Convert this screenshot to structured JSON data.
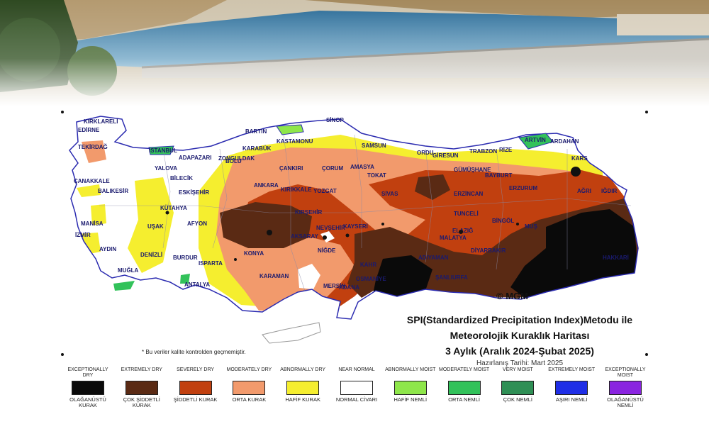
{
  "map": {
    "title_line1": "SPI(Standardized Precipitation Index)Metodu ile",
    "title_line2": "Meteorolojik Kuraklık Haritası",
    "title_line3": "3 Aylık (Aralık 2024-Şubat 2025)",
    "prepared_date": "Hazırlanış Tarihi: Mart 2025",
    "copyright": "© MGM",
    "note": "* Bu veriler kalite kontrolden geçmemiştir.",
    "cities": [
      "KIRKLARELİ",
      "EDİRNE",
      "TEKİRDAĞ",
      "İSTANBUL",
      "ÇANAKKALE",
      "YALOVA",
      "ADAPAZARI",
      "BİLECİK",
      "BALIKESİR",
      "ESKİŞEHİR",
      "KÜTAHYA",
      "MANİSA",
      "İZMİR",
      "UŞAK",
      "AFYON",
      "AYDIN",
      "DENİZLİ",
      "MUĞLA",
      "BURDUR",
      "ISPARTA",
      "ANTALYA",
      "ZONGULDAK",
      "BARTIN",
      "KARABÜK",
      "BOLU",
      "KASTAMONU",
      "SİNOP",
      "SAMSUN",
      "ÇANKIRI",
      "ÇORUM",
      "AMASYA",
      "ANKARA",
      "KIRIKKALE",
      "YOZGAT",
      "TOKAT",
      "SİVAS",
      "KIRŞEHİR",
      "NEVŞEHİR",
      "KAYSERİ",
      "AKSARAY",
      "NİĞDE",
      "KONYA",
      "KARAMAN",
      "MERSİN",
      "ADANA",
      "OSMANİYE",
      "KAHR",
      "ORDU",
      "GİRESUN",
      "TRABZON",
      "RİZE",
      "ARTVİN",
      "ARDAHAN",
      "GÜMÜŞHANE",
      "BAYBURT",
      "ERZİNCAN",
      "ERZURUM",
      "KARS",
      "AĞRI",
      "IĞDIR",
      "TUNCELİ",
      "BİNGÖL",
      "MUŞ",
      "ELAZIĞ",
      "MALATYA",
      "ADIYAMAN",
      "DİYARBAKIR",
      "ŞANLIURFA",
      "HAKKARİ"
    ]
  },
  "legend": [
    {
      "en": "EXCEPTIONALLY DRY",
      "tr": "OLAĞANÜSTÜ KURAK",
      "color": "#0a0a0a"
    },
    {
      "en": "EXTREMELY DRY",
      "tr": "ÇOK ŞİDDETLİ KURAK",
      "color": "#5a2a14"
    },
    {
      "en": "SEVERELY DRY",
      "tr": "ŞİDDETLİ KURAK",
      "color": "#c1400f"
    },
    {
      "en": "MODERATELY DRY",
      "tr": "ORTA KURAK",
      "color": "#f29a6c"
    },
    {
      "en": "ABNORMALLY DRY",
      "tr": "HAFİF KURAK",
      "color": "#f5ee2f"
    },
    {
      "en": "NEAR NORMAL",
      "tr": "NORMAL CİVARI",
      "color": "#ffffff"
    },
    {
      "en": "ABNORMALLY MOIST",
      "tr": "HAFİF NEMLİ",
      "color": "#8ee64a"
    },
    {
      "en": "MODERATELY MOIST",
      "tr": "ORTA NEMLİ",
      "color": "#32c25a"
    },
    {
      "en": "VERY MOIST",
      "tr": "ÇOK NEMLİ",
      "color": "#2f8f55"
    },
    {
      "en": "EXTREMELY MOIST",
      "tr": "AŞIRI NEMLİ",
      "color": "#1f2ee6"
    },
    {
      "en": "EXCEPTIONALLY MOIST",
      "tr": "OLAĞANÜSTÜ NEMLİ",
      "color": "#8a24e0"
    }
  ]
}
